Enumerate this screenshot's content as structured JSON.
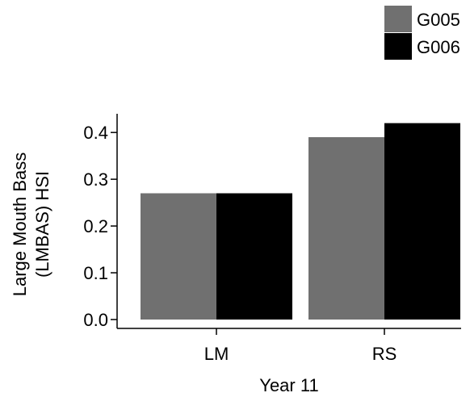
{
  "chart_data": {
    "type": "bar",
    "categories": [
      "LM",
      "RS"
    ],
    "series": [
      {
        "name": "G005",
        "values": [
          0.27,
          0.39
        ],
        "color": "#707070"
      },
      {
        "name": "G006",
        "values": [
          0.27,
          0.42
        ],
        "color": "#000000"
      }
    ],
    "xlabel": "Year 11",
    "ylabel_lines": [
      "Large Mouth Bass",
      "(LMBAS) HSI"
    ],
    "ylim": [
      0,
      0.44
    ],
    "yticks": [
      "0.0",
      "0.1",
      "0.2",
      "0.3",
      "0.4"
    ],
    "ytick_values": [
      0,
      0.1,
      0.2,
      0.3,
      0.4
    ],
    "grid": false,
    "legend_position": "top-right"
  }
}
